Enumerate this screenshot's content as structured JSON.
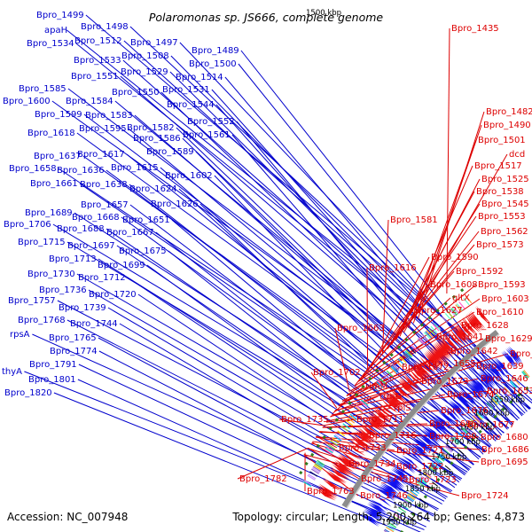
{
  "title": "Polaromonas sp. JS666, complete genome",
  "accession": "Accession: NC_007948",
  "stats": "Topology: circular; Length: 5,200,264 bp; Genes: 4,873",
  "top_tick": "1500 kbp",
  "colors": {
    "left_labels": "#0000cc",
    "right_labels": "#dd0000",
    "backbone": "#8c8c8c",
    "blue_track": "#1111ee",
    "red_track": "#ee1111",
    "gc_track": "#2f7d1f"
  },
  "ticks": [
    "1550 kbp",
    "1600 kbp",
    "1650 kbp",
    "1700 kbp",
    "1750 kbp",
    "1800 kbp",
    "1850 kbp",
    "1900 kbp",
    "1950 kbp"
  ],
  "left_labels": [
    "Bpro_1499",
    "apaH",
    "Bpro_1534",
    "Bpro_1498",
    "Bpro_1512",
    "Bpro_1497",
    "Bpro_1508",
    "Bpro_1489",
    "Bpro_1533",
    "Bpro_1500",
    "Bpro_1514",
    "Bpro_1529",
    "Bpro_1551",
    "Bpro_1531",
    "Bpro_1585",
    "Bpro_1550",
    "Bpro_1600",
    "Bpro_1584",
    "Bpro_1544",
    "Bpro_1599",
    "Bpro_1583",
    "Bpro_1552",
    "Bpro_1595",
    "Bpro_1582",
    "Bpro_1618",
    "Bpro_1586",
    "Bpro_1561",
    "Bpro_1589",
    "Bpro_1637",
    "Bpro_1617",
    "Bpro_1658",
    "Bpro_1636",
    "Bpro_1615",
    "Bpro_1602",
    "Bpro_1661",
    "Bpro_1638",
    "Bpro_1624",
    "Bpro_1657",
    "Bpro_1626",
    "Bpro_1689",
    "Bpro_1668",
    "Bpro_1706",
    "Bpro_1688",
    "Bpro_1651",
    "Bpro_1667",
    "Bpro_1715",
    "Bpro_1697",
    "Bpro_1675",
    "Bpro_1713",
    "Bpro_1699",
    "Bpro_1730",
    "Bpro_1712",
    "Bpro_1736",
    "Bpro_1720",
    "Bpro_1757",
    "Bpro_1739",
    "Bpro_1768",
    "Bpro_1744",
    "rpsA",
    "Bpro_1765",
    "Bpro_1774",
    "thyA",
    "Bpro_1791",
    "Bpro_1801",
    "Bpro_1820"
  ],
  "right_labels": [
    "Bpro_1435",
    "Bpro_1482",
    "Bpro_1490",
    "Bpro_1501",
    "dcd",
    "Bpro_1517",
    "Bpro_1525",
    "Bpro_1538",
    "Bpro_1545",
    "Bpro_1581",
    "Bpro_1553",
    "Bpro_1562",
    "Bpro_1573",
    "Bpro_1590",
    "Bpro_1592",
    "Bpro_1616",
    "Bpro_1608",
    "Bpro_1593",
    "Bpro_1603",
    "gltX",
    "Bpro_1610",
    "Bpro_1627",
    "Bpro_1628",
    "Bpro_1663",
    "Bpro_1641",
    "Bpro_1629",
    "Bpro_1642",
    "Bpro_1631",
    "Bpro_1655",
    "Bpro_1639",
    "Bpro_1702",
    "Bpro_1672",
    "Bpro_1646",
    "Bpro_1673",
    "rimM",
    "Bpro_1653",
    "trmD",
    "Bpro_1674",
    "rplS",
    "Bpro_1676",
    "Bpro_1735",
    "Bpro_1711",
    "Bpro_1696",
    "Bpro_1677",
    "Bpro_1716",
    "Bpro_1700",
    "Bpro_1680",
    "Bpro_1733",
    "Bpro_1721",
    "Bpro_1686",
    "Bpro_1734",
    "Bpro_1722",
    "Bpro_1695",
    "Bpro_1782",
    "Bpro_1745",
    "Bpro_1723",
    "Bpro_1763",
    "Bpro_1746",
    "Bpro_1724"
  ]
}
